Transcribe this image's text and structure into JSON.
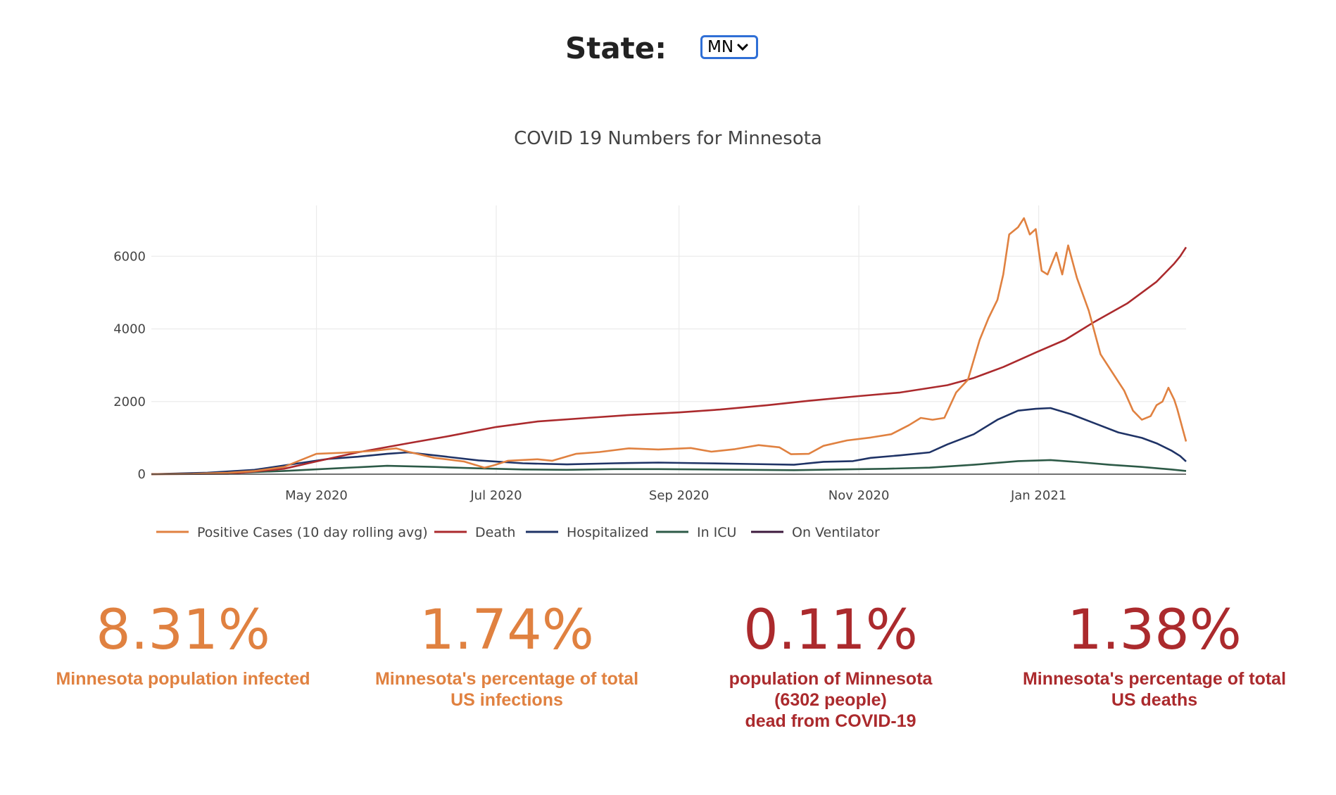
{
  "state_selector": {
    "label": "State:",
    "selected": "MN"
  },
  "chart_data": {
    "type": "line",
    "title": "COVID 19 Numbers for Minnesota",
    "xlabel": "",
    "ylabel": "",
    "xlim": [
      "2020-03-06",
      "2021-02-20"
    ],
    "ylim": [
      0,
      7400
    ],
    "x_ticks": [
      {
        "date": "2020-05-01",
        "label": "May 2020"
      },
      {
        "date": "2020-07-01",
        "label": "Jul 2020"
      },
      {
        "date": "2020-09-01",
        "label": "Sep 2020"
      },
      {
        "date": "2020-11-01",
        "label": "Nov 2020"
      },
      {
        "date": "2021-01-01",
        "label": "Jan 2021"
      }
    ],
    "y_ticks": [
      {
        "value": 0,
        "label": "0"
      },
      {
        "value": 2000,
        "label": "2000"
      },
      {
        "value": 4000,
        "label": "4000"
      },
      {
        "value": 6000,
        "label": "6000"
      }
    ],
    "grid": true,
    "legend_placement": "bottom",
    "series": [
      {
        "name": "Positive Cases (10 day rolling avg)",
        "color": "#e08140",
        "points": [
          [
            "2020-03-06",
            0
          ],
          [
            "2020-03-20",
            10
          ],
          [
            "2020-04-01",
            40
          ],
          [
            "2020-04-10",
            90
          ],
          [
            "2020-04-20",
            200
          ],
          [
            "2020-04-26",
            400
          ],
          [
            "2020-05-01",
            560
          ],
          [
            "2020-05-10",
            590
          ],
          [
            "2020-05-20",
            640
          ],
          [
            "2020-05-28",
            710
          ],
          [
            "2020-06-01",
            620
          ],
          [
            "2020-06-10",
            450
          ],
          [
            "2020-06-20",
            350
          ],
          [
            "2020-06-27",
            180
          ],
          [
            "2020-06-30",
            240
          ],
          [
            "2020-07-05",
            370
          ],
          [
            "2020-07-15",
            410
          ],
          [
            "2020-07-20",
            370
          ],
          [
            "2020-07-28",
            560
          ],
          [
            "2020-08-05",
            610
          ],
          [
            "2020-08-15",
            710
          ],
          [
            "2020-08-25",
            680
          ],
          [
            "2020-09-05",
            720
          ],
          [
            "2020-09-12",
            620
          ],
          [
            "2020-09-20",
            690
          ],
          [
            "2020-09-28",
            800
          ],
          [
            "2020-10-05",
            740
          ],
          [
            "2020-10-09",
            550
          ],
          [
            "2020-10-15",
            560
          ],
          [
            "2020-10-20",
            780
          ],
          [
            "2020-10-28",
            930
          ],
          [
            "2020-11-05",
            1010
          ],
          [
            "2020-11-12",
            1100
          ],
          [
            "2020-11-18",
            1350
          ],
          [
            "2020-11-22",
            1550
          ],
          [
            "2020-11-26",
            1500
          ],
          [
            "2020-11-30",
            1550
          ],
          [
            "2020-12-04",
            2250
          ],
          [
            "2020-12-08",
            2600
          ],
          [
            "2020-12-12",
            3700
          ],
          [
            "2020-12-15",
            4300
          ],
          [
            "2020-12-18",
            4800
          ],
          [
            "2020-12-20",
            5500
          ],
          [
            "2020-12-22",
            6600
          ],
          [
            "2020-12-25",
            6800
          ],
          [
            "2020-12-27",
            7050
          ],
          [
            "2020-12-29",
            6600
          ],
          [
            "2020-12-31",
            6750
          ],
          [
            "2021-01-02",
            5600
          ],
          [
            "2021-01-04",
            5500
          ],
          [
            "2021-01-07",
            6100
          ],
          [
            "2021-01-09",
            5500
          ],
          [
            "2021-01-11",
            6300
          ],
          [
            "2021-01-14",
            5400
          ],
          [
            "2021-01-18",
            4500
          ],
          [
            "2021-01-22",
            3300
          ],
          [
            "2021-01-26",
            2800
          ],
          [
            "2021-01-30",
            2300
          ],
          [
            "2021-02-02",
            1750
          ],
          [
            "2021-02-05",
            1500
          ],
          [
            "2021-02-08",
            1600
          ],
          [
            "2021-02-10",
            1900
          ],
          [
            "2021-02-12",
            2000
          ],
          [
            "2021-02-14",
            2380
          ],
          [
            "2021-02-16",
            2050
          ],
          [
            "2021-02-17",
            1800
          ],
          [
            "2021-02-18",
            1500
          ],
          [
            "2021-02-19",
            1200
          ],
          [
            "2021-02-20",
            900
          ]
        ]
      },
      {
        "name": "Death",
        "color": "#ab2a2d",
        "points": [
          [
            "2020-03-06",
            0
          ],
          [
            "2020-04-01",
            10
          ],
          [
            "2020-04-20",
            150
          ],
          [
            "2020-05-01",
            350
          ],
          [
            "2020-05-15",
            600
          ],
          [
            "2020-06-01",
            850
          ],
          [
            "2020-06-15",
            1050
          ],
          [
            "2020-07-01",
            1300
          ],
          [
            "2020-07-15",
            1450
          ],
          [
            "2020-08-01",
            1550
          ],
          [
            "2020-08-15",
            1630
          ],
          [
            "2020-09-01",
            1700
          ],
          [
            "2020-09-15",
            1780
          ],
          [
            "2020-10-01",
            1900
          ],
          [
            "2020-10-15",
            2020
          ],
          [
            "2020-11-01",
            2150
          ],
          [
            "2020-11-15",
            2250
          ],
          [
            "2020-12-01",
            2450
          ],
          [
            "2020-12-10",
            2650
          ],
          [
            "2020-12-20",
            2950
          ],
          [
            "2020-12-31",
            3350
          ],
          [
            "2021-01-10",
            3700
          ],
          [
            "2021-01-20",
            4200
          ],
          [
            "2021-01-31",
            4700
          ],
          [
            "2021-02-05",
            5000
          ],
          [
            "2021-02-10",
            5300
          ],
          [
            "2021-02-13",
            5550
          ],
          [
            "2021-02-16",
            5800
          ],
          [
            "2021-02-18",
            6000
          ],
          [
            "2021-02-20",
            6250
          ]
        ]
      },
      {
        "name": "Hospitalized",
        "color": "#1f3366",
        "points": [
          [
            "2020-03-06",
            0
          ],
          [
            "2020-03-25",
            40
          ],
          [
            "2020-04-10",
            120
          ],
          [
            "2020-04-25",
            300
          ],
          [
            "2020-05-05",
            420
          ],
          [
            "2020-05-15",
            480
          ],
          [
            "2020-05-25",
            560
          ],
          [
            "2020-06-01",
            600
          ],
          [
            "2020-06-10",
            520
          ],
          [
            "2020-06-25",
            380
          ],
          [
            "2020-07-10",
            300
          ],
          [
            "2020-07-25",
            270
          ],
          [
            "2020-08-10",
            300
          ],
          [
            "2020-08-25",
            320
          ],
          [
            "2020-09-10",
            300
          ],
          [
            "2020-09-25",
            280
          ],
          [
            "2020-10-10",
            260
          ],
          [
            "2020-10-20",
            340
          ],
          [
            "2020-10-30",
            360
          ],
          [
            "2020-11-05",
            450
          ],
          [
            "2020-11-15",
            520
          ],
          [
            "2020-11-25",
            600
          ],
          [
            "2020-12-01",
            820
          ],
          [
            "2020-12-10",
            1100
          ],
          [
            "2020-12-18",
            1500
          ],
          [
            "2020-12-25",
            1750
          ],
          [
            "2020-12-31",
            1800
          ],
          [
            "2021-01-05",
            1820
          ],
          [
            "2021-01-12",
            1650
          ],
          [
            "2021-01-20",
            1400
          ],
          [
            "2021-01-28",
            1150
          ],
          [
            "2021-02-05",
            1000
          ],
          [
            "2021-02-10",
            850
          ],
          [
            "2021-02-15",
            650
          ],
          [
            "2021-02-18",
            500
          ],
          [
            "2021-02-20",
            350
          ]
        ]
      },
      {
        "name": "In ICU",
        "color": "#2d5a47",
        "points": [
          [
            "2020-03-06",
            0
          ],
          [
            "2020-04-01",
            30
          ],
          [
            "2020-04-20",
            90
          ],
          [
            "2020-05-10",
            170
          ],
          [
            "2020-05-25",
            230
          ],
          [
            "2020-06-10",
            200
          ],
          [
            "2020-06-25",
            160
          ],
          [
            "2020-07-10",
            130
          ],
          [
            "2020-07-25",
            120
          ],
          [
            "2020-08-10",
            140
          ],
          [
            "2020-08-25",
            140
          ],
          [
            "2020-09-10",
            130
          ],
          [
            "2020-09-25",
            120
          ],
          [
            "2020-10-10",
            110
          ],
          [
            "2020-10-25",
            130
          ],
          [
            "2020-11-10",
            150
          ],
          [
            "2020-11-25",
            180
          ],
          [
            "2020-12-10",
            260
          ],
          [
            "2020-12-25",
            360
          ],
          [
            "2021-01-05",
            390
          ],
          [
            "2021-01-15",
            330
          ],
          [
            "2021-01-25",
            260
          ],
          [
            "2021-02-05",
            200
          ],
          [
            "2021-02-15",
            130
          ],
          [
            "2021-02-20",
            90
          ]
        ]
      },
      {
        "name": "On Ventilator",
        "color": "#3d1a3d",
        "points": []
      }
    ]
  },
  "stats": [
    {
      "value": "8.31%",
      "lines": [
        "Minnesota population infected"
      ],
      "color": "#e08140"
    },
    {
      "value": "1.74%",
      "lines": [
        "Minnesota's percentage of total",
        "US infections"
      ],
      "color": "#e08140"
    },
    {
      "value": "0.11%",
      "lines": [
        "population of Minnesota",
        "(6302 people)",
        "dead from COVID-19"
      ],
      "color": "#ab2a2d"
    },
    {
      "value": "1.38%",
      "lines": [
        "Minnesota's percentage of total",
        "US deaths"
      ],
      "color": "#ab2a2d"
    }
  ]
}
